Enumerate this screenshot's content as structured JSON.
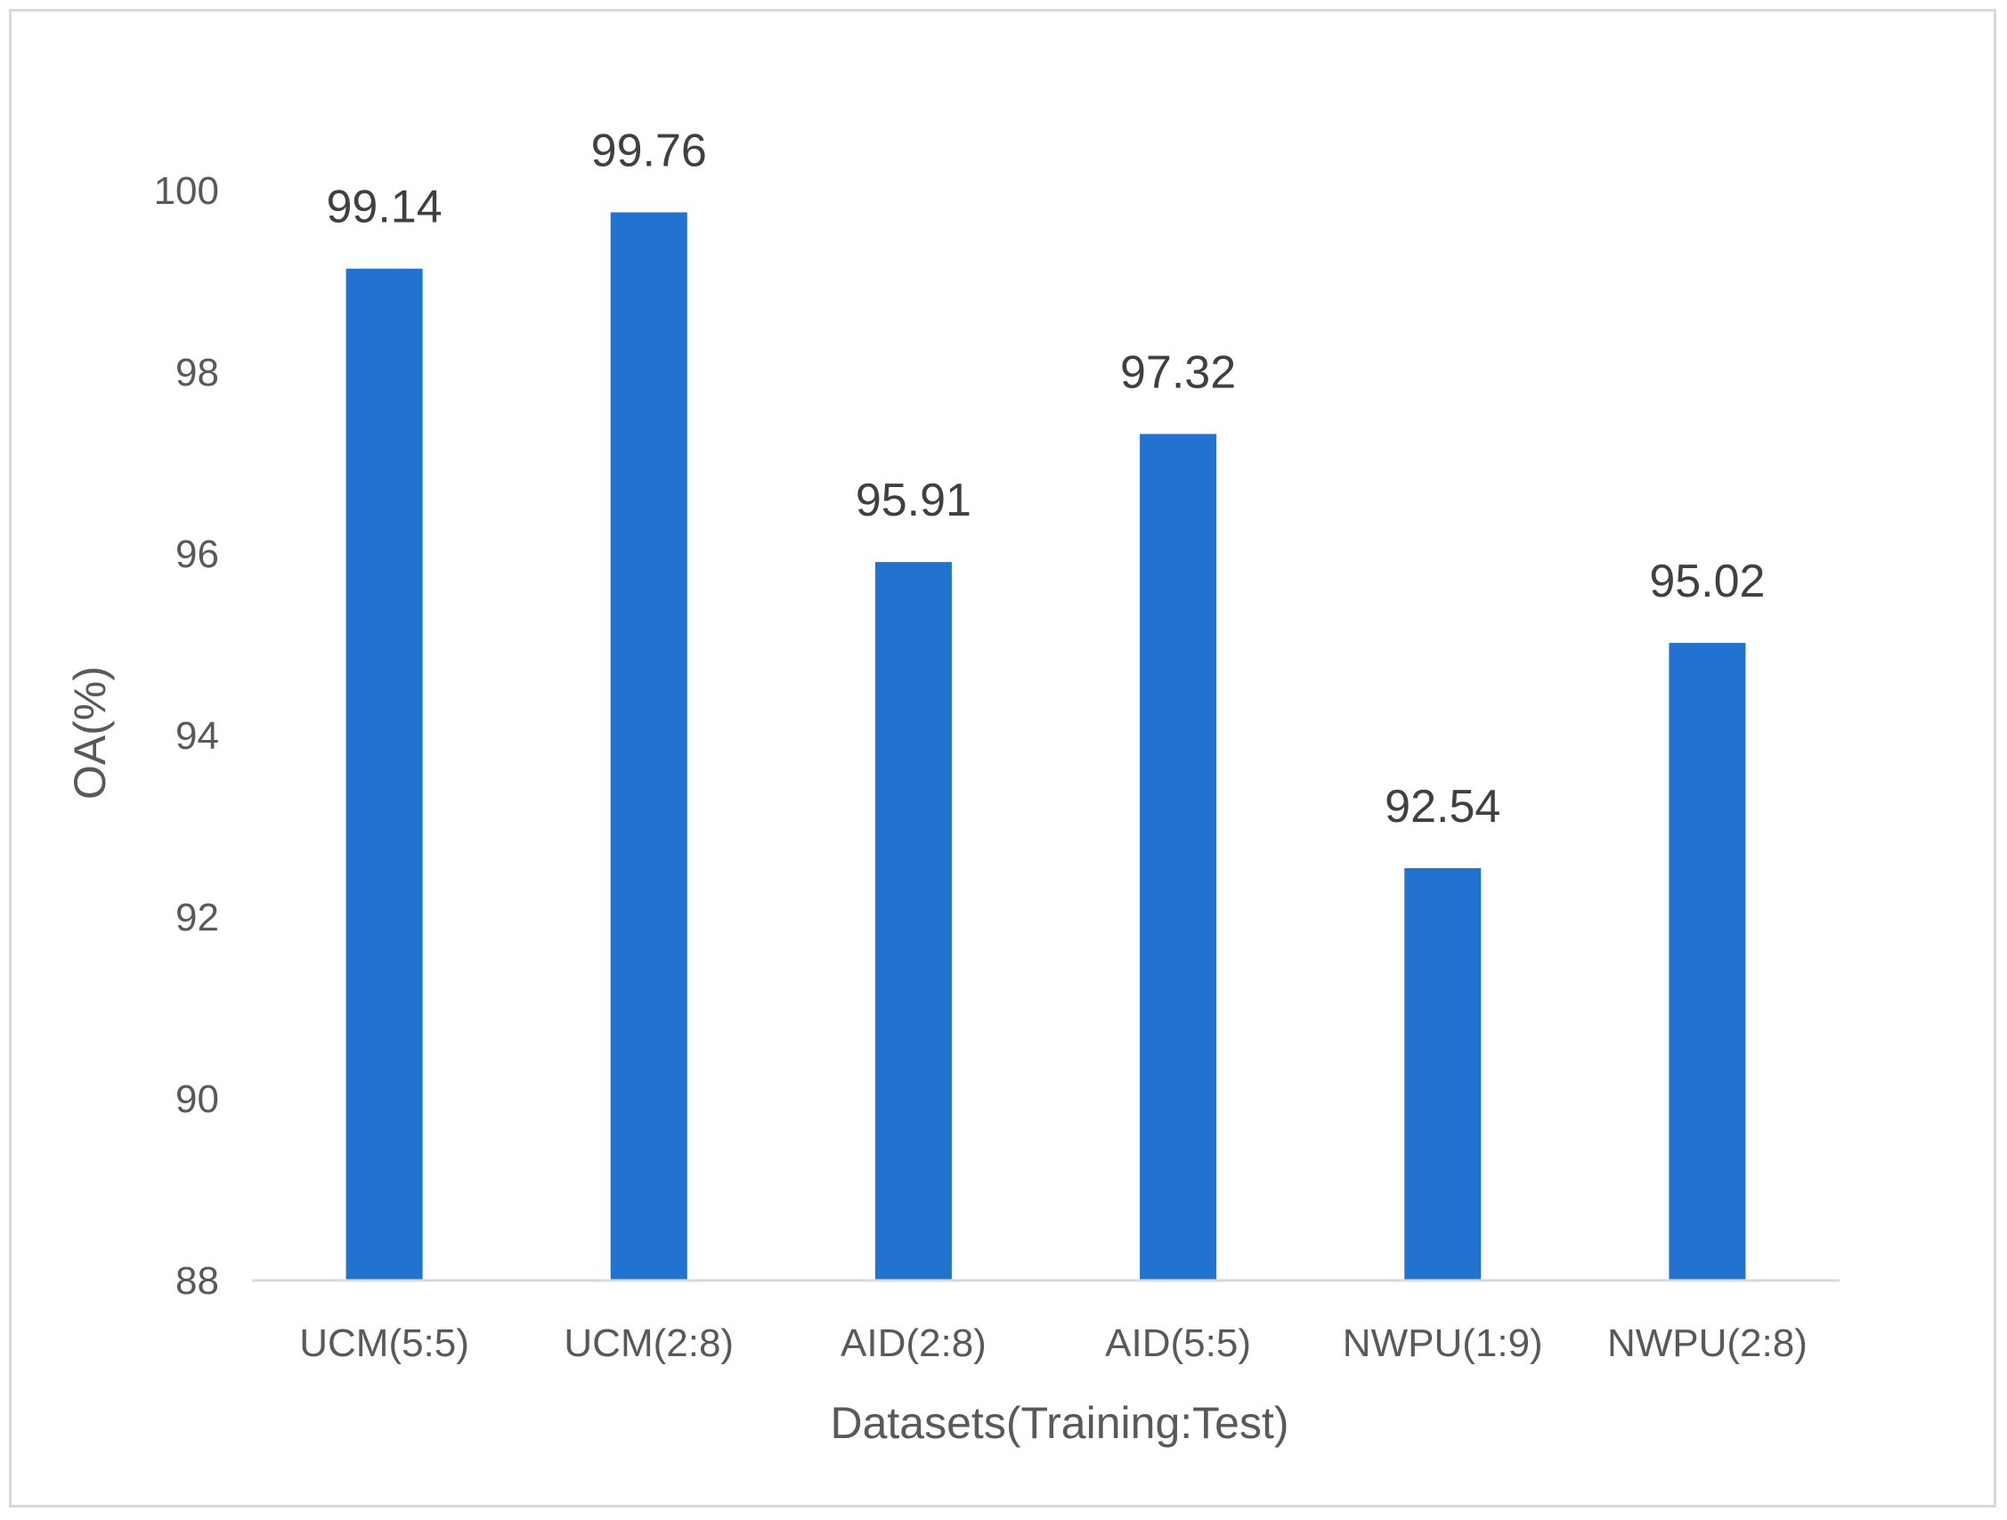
{
  "chart_data": {
    "type": "bar",
    "title": "",
    "xlabel": "Datasets(Training:Test)",
    "ylabel": "OA(%)",
    "ylim": [
      88,
      100
    ],
    "yticks": [
      88,
      90,
      92,
      94,
      96,
      98,
      100
    ],
    "categories": [
      "UCM(5:5)",
      "UCM(2:8)",
      "AID(2:8)",
      "AID(5:5)",
      "NWPU(1:9)",
      "NWPU(2:8)"
    ],
    "values": [
      99.14,
      99.76,
      95.91,
      97.32,
      92.54,
      95.02
    ],
    "data_labels": [
      "99.14",
      "99.76",
      "95.91",
      "97.32",
      "92.54",
      "95.02"
    ],
    "bar_color": "#2272d0",
    "grid": false,
    "legend": "none"
  }
}
